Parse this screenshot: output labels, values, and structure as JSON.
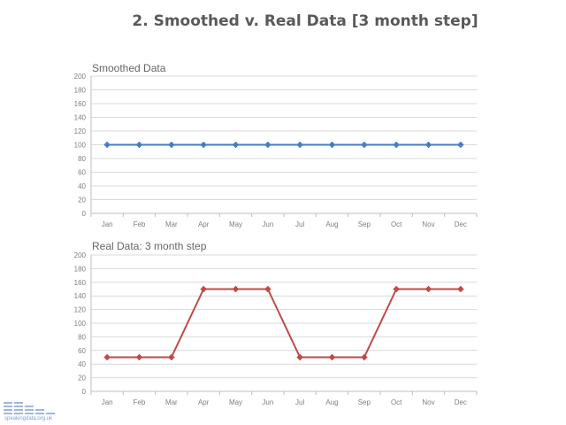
{
  "slide": {
    "title": "2. Smoothed v. Real Data [3 month step]"
  },
  "logo": {
    "text": "speakingdata.org.uk"
  },
  "colors": {
    "smoothed": "#4a7ebb",
    "real": "#be4b48",
    "grid": "#d9d9d9",
    "axis": "#bfbfbf"
  },
  "chart_data": [
    {
      "type": "line",
      "title": "Smoothed Data",
      "categories": [
        "Jan",
        "Feb",
        "Mar",
        "Apr",
        "May",
        "Jun",
        "Jul",
        "Aug",
        "Sep",
        "Oct",
        "Nov",
        "Dec"
      ],
      "series": [
        {
          "values": [
            100,
            100,
            100,
            100,
            100,
            100,
            100,
            100,
            100,
            100,
            100,
            100
          ]
        }
      ],
      "ylim": [
        0,
        200
      ],
      "yticks": [
        "0",
        "20",
        "40",
        "60",
        "80",
        "100",
        "120",
        "140",
        "160",
        "180",
        "200"
      ],
      "grid": true,
      "marker": "diamond"
    },
    {
      "type": "line",
      "title": "Real Data: 3 month step",
      "categories": [
        "Jan",
        "Feb",
        "Mar",
        "Apr",
        "May",
        "Jun",
        "Jul",
        "Aug",
        "Sep",
        "Oct",
        "Nov",
        "Dec"
      ],
      "series": [
        {
          "values": [
            50,
            50,
            50,
            150,
            150,
            150,
            50,
            50,
            50,
            150,
            150,
            150
          ]
        }
      ],
      "ylim": [
        0,
        200
      ],
      "yticks": [
        "0",
        "20",
        "40",
        "60",
        "80",
        "100",
        "120",
        "140",
        "160",
        "180",
        "200"
      ],
      "grid": true,
      "marker": "diamond"
    }
  ]
}
